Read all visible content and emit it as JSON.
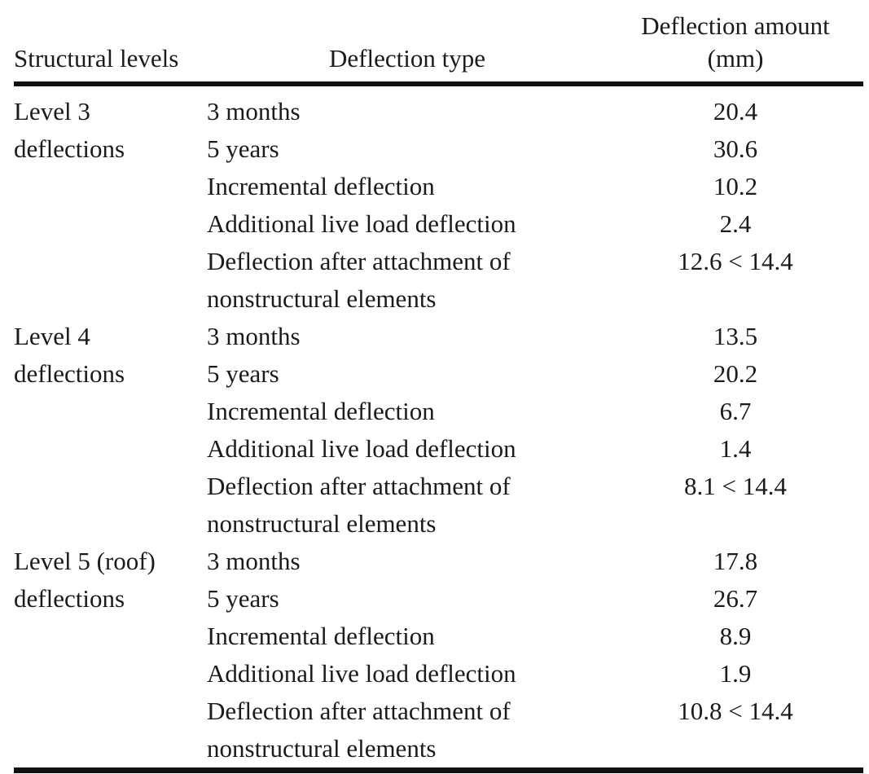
{
  "page": {
    "background": "#ffffff",
    "text_color": "#1b1b1b",
    "rule_color": "#111111"
  },
  "table": {
    "header": {
      "col1": "Structural levels",
      "col2": "Deflection type",
      "col3_line1": "Deflection amount",
      "col3_line2": "(mm)"
    },
    "sections": [
      {
        "level_line1": "Level 3",
        "level_line2": "deflections",
        "rows": [
          {
            "type": "3 months",
            "value": "20.4"
          },
          {
            "type": "5 years",
            "value": "30.6"
          },
          {
            "type": "Incremental deflection",
            "value": "10.2"
          },
          {
            "type": "Additional live load deflection",
            "value": "2.4"
          },
          {
            "type_line1": "Deflection after attachment of",
            "type_line2": "nonstructural elements",
            "value": "12.6 < 14.4"
          }
        ]
      },
      {
        "level_line1": "Level 4",
        "level_line2": "deflections",
        "rows": [
          {
            "type": "3 months",
            "value": "13.5"
          },
          {
            "type": "5 years",
            "value": "20.2"
          },
          {
            "type": "Incremental deflection",
            "value": "6.7"
          },
          {
            "type": "Additional live load deflection",
            "value": "1.4"
          },
          {
            "type_line1": "Deflection after attachment of",
            "type_line2": "nonstructural elements",
            "value": "8.1 < 14.4"
          }
        ]
      },
      {
        "level_line1": "Level 5 (roof)",
        "level_line2": "deflections",
        "rows": [
          {
            "type": "3 months",
            "value": "17.8"
          },
          {
            "type": "5 years",
            "value": "26.7"
          },
          {
            "type": "Incremental deflection",
            "value": "8.9"
          },
          {
            "type": "Additional live load deflection",
            "value": "1.9"
          },
          {
            "type_line1": "Deflection after attachment of",
            "type_line2": "nonstructural elements",
            "value": "10.8 < 14.4"
          }
        ]
      }
    ]
  }
}
